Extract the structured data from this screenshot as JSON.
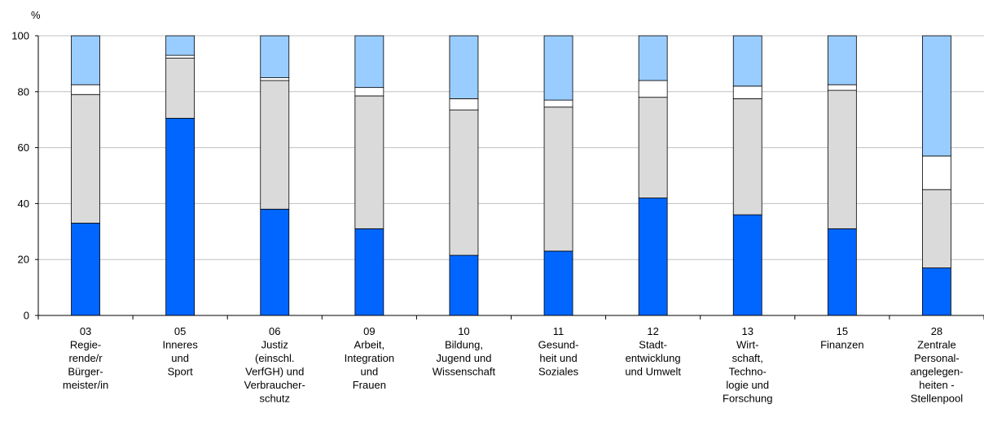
{
  "chart_data": {
    "type": "bar",
    "stacked": true,
    "y_unit": "%",
    "ylim": [
      0,
      100
    ],
    "yticks": [
      0,
      20,
      40,
      60,
      80,
      100
    ],
    "grid": true,
    "categories": [
      [
        "03",
        "Regie-",
        "rende/r",
        "Bürger-",
        "meister/in"
      ],
      [
        "05",
        "Inneres",
        "und",
        "Sport"
      ],
      [
        "06",
        "Justiz",
        "(einschl.",
        "VerfGH) und",
        "Verbraucher-",
        "schutz"
      ],
      [
        "09",
        "Arbeit,",
        "Integration",
        "und",
        "Frauen"
      ],
      [
        "10",
        "Bildung,",
        "Jugend und",
        "Wissenschaft"
      ],
      [
        "11",
        "Gesund-",
        "heit und",
        "Soziales"
      ],
      [
        "12",
        "Stadt-",
        "entwicklung",
        "und Umwelt"
      ],
      [
        "13",
        "Wirt-",
        "schaft,",
        "Techno-",
        "logie und",
        "Forschung"
      ],
      [
        "15",
        "Finanzen"
      ],
      [
        "28",
        "Zentrale",
        "Personal-",
        "angelegen-",
        "heiten -",
        "Stellenpool"
      ]
    ],
    "series": [
      {
        "color": "#0066ff",
        "values": [
          33,
          70.5,
          38,
          31,
          21.5,
          23,
          42,
          36,
          31,
          17
        ]
      },
      {
        "color": "#dadada",
        "values": [
          46,
          21.5,
          46,
          47.5,
          52,
          51.5,
          36,
          41.5,
          49.5,
          28
        ]
      },
      {
        "color": "#ffffff",
        "values": [
          3.5,
          1,
          1,
          3,
          4,
          2.5,
          6,
          4.5,
          2,
          12
        ]
      },
      {
        "color": "#99ccff",
        "values": [
          17.5,
          7,
          15,
          18.5,
          22.5,
          23,
          16,
          18,
          17.5,
          43
        ]
      }
    ]
  }
}
